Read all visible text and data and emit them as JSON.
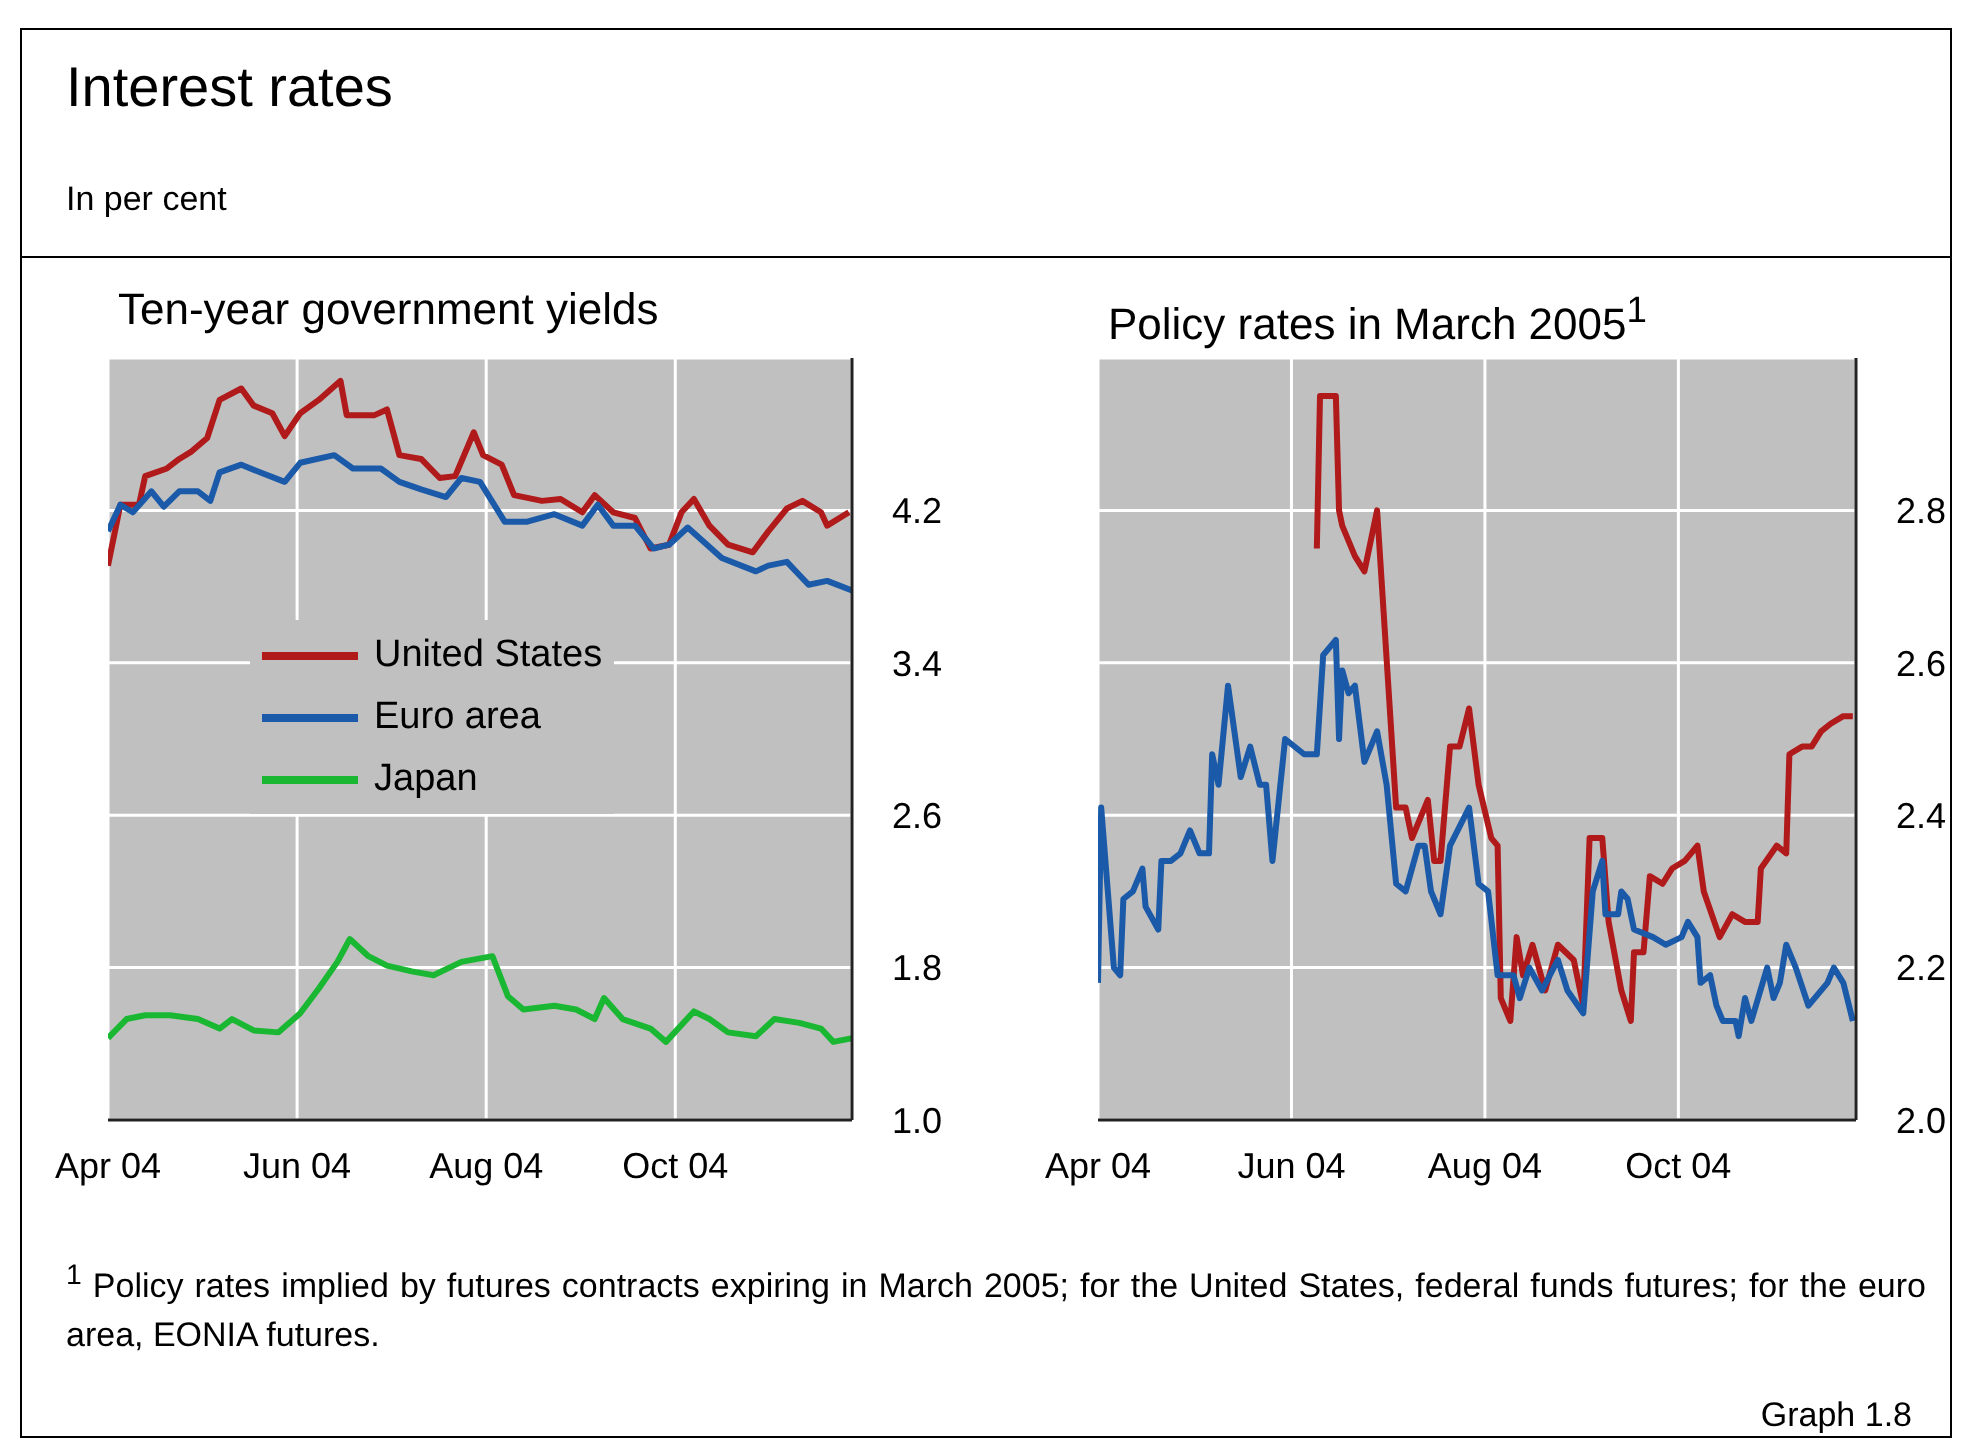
{
  "chart_data": [
    {
      "type": "other",
      "title": "Interest rates",
      "subtitle": "In per cent"
    },
    {
      "type": "line",
      "title": "Ten-year government yields",
      "grid": true,
      "legend": "left",
      "line_style": "solid",
      "marker": "none",
      "xlim": [
        "2004-04-01",
        "2004-11-27"
      ],
      "xticks": [
        {
          "value": "2004-04-01",
          "label": "Apr 04"
        },
        {
          "value": "2004-06-01",
          "label": "Jun 04"
        },
        {
          "value": "2004-08-01",
          "label": "Aug 04"
        },
        {
          "value": "2004-10-01",
          "label": "Oct 04"
        }
      ],
      "ylim": [
        1.0,
        5.0
      ],
      "yticks": [
        {
          "value": 1.0,
          "label": "1.0"
        },
        1.8,
        2.6,
        3.4,
        4.2
      ],
      "series": [
        {
          "name": "United States",
          "color": "#b01a1a",
          "x": [
            "2004-04-01",
            "2004-04-05",
            "2004-04-11",
            "2004-04-13",
            "2004-04-20",
            "2004-04-24",
            "2004-04-28",
            "2004-05-03",
            "2004-05-07",
            "2004-05-14",
            "2004-05-18",
            "2004-05-24",
            "2004-05-28",
            "2004-06-02",
            "2004-06-08",
            "2004-06-15",
            "2004-06-17",
            "2004-06-26",
            "2004-06-30",
            "2004-07-04",
            "2004-07-11",
            "2004-07-17",
            "2004-07-22",
            "2004-07-28",
            "2004-07-31",
            "2004-08-06",
            "2004-08-10",
            "2004-08-19",
            "2004-08-25",
            "2004-09-01",
            "2004-09-05",
            "2004-09-11",
            "2004-09-18",
            "2004-09-23",
            "2004-09-29",
            "2004-10-03",
            "2004-10-07",
            "2004-10-12",
            "2004-10-18",
            "2004-10-26",
            "2004-10-31",
            "2004-11-06",
            "2004-11-11",
            "2004-11-17",
            "2004-11-19",
            "2004-11-26"
          ],
          "values": [
            3.91,
            4.23,
            4.23,
            4.38,
            4.42,
            4.47,
            4.51,
            4.58,
            4.78,
            4.84,
            4.75,
            4.71,
            4.59,
            4.71,
            4.78,
            4.88,
            4.7,
            4.7,
            4.73,
            4.49,
            4.47,
            4.37,
            4.38,
            4.61,
            4.49,
            4.44,
            4.28,
            4.25,
            4.26,
            4.19,
            4.28,
            4.19,
            4.16,
            4.0,
            4.02,
            4.19,
            4.26,
            4.12,
            4.02,
            3.98,
            4.09,
            4.21,
            4.25,
            4.19,
            4.12,
            4.19
          ]
        },
        {
          "name": "Euro area",
          "color": "#1a5aa8",
          "x": [
            "2004-04-01",
            "2004-04-05",
            "2004-04-09",
            "2004-04-15",
            "2004-04-19",
            "2004-04-24",
            "2004-04-30",
            "2004-05-04",
            "2004-05-07",
            "2004-05-14",
            "2004-05-20",
            "2004-05-28",
            "2004-06-02",
            "2004-06-13",
            "2004-06-19",
            "2004-06-28",
            "2004-07-04",
            "2004-07-11",
            "2004-07-19",
            "2004-07-24",
            "2004-07-30",
            "2004-08-07",
            "2004-08-14",
            "2004-08-23",
            "2004-09-01",
            "2004-09-06",
            "2004-09-11",
            "2004-09-18",
            "2004-09-24",
            "2004-09-29",
            "2004-10-05",
            "2004-10-16",
            "2004-10-27",
            "2004-10-31",
            "2004-11-06",
            "2004-11-13",
            "2004-11-19",
            "2004-11-27"
          ],
          "values": [
            4.09,
            4.23,
            4.19,
            4.3,
            4.22,
            4.3,
            4.3,
            4.25,
            4.4,
            4.44,
            4.4,
            4.35,
            4.45,
            4.49,
            4.42,
            4.42,
            4.35,
            4.31,
            4.27,
            4.37,
            4.35,
            4.14,
            4.14,
            4.18,
            4.12,
            4.23,
            4.12,
            4.12,
            4.0,
            4.02,
            4.11,
            3.95,
            3.88,
            3.91,
            3.93,
            3.81,
            3.83,
            3.78
          ]
        },
        {
          "name": "Japan",
          "color": "#1ab832",
          "x": [
            "2004-04-01",
            "2004-04-07",
            "2004-04-13",
            "2004-04-21",
            "2004-04-30",
            "2004-05-07",
            "2004-05-11",
            "2004-05-18",
            "2004-05-26",
            "2004-06-02",
            "2004-06-08",
            "2004-06-14",
            "2004-06-18",
            "2004-06-24",
            "2004-06-30",
            "2004-07-08",
            "2004-07-15",
            "2004-07-24",
            "2004-08-03",
            "2004-08-08",
            "2004-08-13",
            "2004-08-23",
            "2004-08-30",
            "2004-09-05",
            "2004-09-08",
            "2004-09-14",
            "2004-09-23",
            "2004-09-28",
            "2004-10-07",
            "2004-10-12",
            "2004-10-18",
            "2004-10-27",
            "2004-11-02",
            "2004-11-10",
            "2004-11-17",
            "2004-11-21",
            "2004-11-27"
          ],
          "values": [
            1.43,
            1.53,
            1.55,
            1.55,
            1.53,
            1.48,
            1.53,
            1.47,
            1.46,
            1.56,
            1.69,
            1.83,
            1.95,
            1.86,
            1.81,
            1.78,
            1.76,
            1.83,
            1.86,
            1.65,
            1.58,
            1.6,
            1.58,
            1.53,
            1.64,
            1.53,
            1.48,
            1.41,
            1.57,
            1.53,
            1.46,
            1.44,
            1.53,
            1.51,
            1.48,
            1.41,
            1.43
          ]
        }
      ]
    },
    {
      "type": "line",
      "title": "Policy rates in March 2005$^{1}$",
      "grid": true,
      "line_style": "solid",
      "marker": "none",
      "xlim": [
        "2004-04-01",
        "2004-11-26"
      ],
      "xticks": [
        {
          "value": "2004-04-01",
          "label": "Apr 04"
        },
        {
          "value": "2004-06-01",
          "label": "Jun 04"
        },
        {
          "value": "2004-08-01",
          "label": "Aug 04"
        },
        {
          "value": "2004-10-01",
          "label": "Oct 04"
        }
      ],
      "ylim": [
        2.0,
        3.0
      ],
      "yticks": [
        {
          "value": 2.0,
          "label": "2.0"
        },
        2.2,
        2.4,
        2.6,
        2.8
      ],
      "annotations": [
        "$^{1}$ Policy rates implied by futures contracts expiring in March 2005; for the United States, federal funds futures; for the euro area, EONIA futures.",
        "Graph 1.8"
      ],
      "series": [
        {
          "color": "#b01a1a",
          "x": [
            "2004-06-09",
            "2004-06-10",
            "2004-06-15",
            "2004-06-16",
            "2004-06-17",
            "2004-06-21",
            "2004-06-24",
            "2004-06-28",
            "2004-07-04",
            "2004-07-07",
            "2004-07-09",
            "2004-07-14",
            "2004-07-16",
            "2004-07-18",
            "2004-07-21",
            "2004-07-24",
            "2004-07-27",
            "2004-07-30",
            "2004-08-03",
            "2004-08-05",
            "2004-08-06",
            "2004-08-09",
            "2004-08-11",
            "2004-08-13",
            "2004-08-16",
            "2004-08-20",
            "2004-08-24",
            "2004-08-29",
            "2004-09-01",
            "2004-09-03",
            "2004-09-07",
            "2004-09-09",
            "2004-09-13",
            "2004-09-16",
            "2004-09-17",
            "2004-09-20",
            "2004-09-22",
            "2004-09-26",
            "2004-09-29",
            "2004-10-03",
            "2004-10-05",
            "2004-10-07",
            "2004-10-09",
            "2004-10-14",
            "2004-10-18",
            "2004-10-22",
            "2004-10-26",
            "2004-10-27",
            "2004-11-01",
            "2004-11-04",
            "2004-11-05",
            "2004-11-09",
            "2004-11-12",
            "2004-11-15",
            "2004-11-18",
            "2004-11-22",
            "2004-11-25"
          ],
          "values": [
            2.75,
            2.95,
            2.95,
            2.8,
            2.78,
            2.74,
            2.72,
            2.8,
            2.41,
            2.41,
            2.37,
            2.42,
            2.34,
            2.34,
            2.49,
            2.49,
            2.54,
            2.44,
            2.37,
            2.36,
            2.16,
            2.13,
            2.24,
            2.19,
            2.23,
            2.17,
            2.23,
            2.21,
            2.15,
            2.37,
            2.37,
            2.26,
            2.17,
            2.13,
            2.22,
            2.22,
            2.32,
            2.31,
            2.33,
            2.34,
            2.35,
            2.36,
            2.3,
            2.24,
            2.27,
            2.26,
            2.26,
            2.33,
            2.36,
            2.35,
            2.48,
            2.49,
            2.49,
            2.51,
            2.52,
            2.53,
            2.53
          ]
        },
        {
          "color": "#1a5aa8",
          "x": [
            "2004-04-01",
            "2004-04-02",
            "2004-04-06",
            "2004-04-08",
            "2004-04-09",
            "2004-04-12",
            "2004-04-15",
            "2004-04-16",
            "2004-04-20",
            "2004-04-21",
            "2004-04-24",
            "2004-04-27",
            "2004-04-30",
            "2004-05-03",
            "2004-05-06",
            "2004-05-07",
            "2004-05-09",
            "2004-05-12",
            "2004-05-16",
            "2004-05-19",
            "2004-05-22",
            "2004-05-24",
            "2004-05-26",
            "2004-05-30",
            "2004-06-05",
            "2004-06-09",
            "2004-06-11",
            "2004-06-15",
            "2004-06-16",
            "2004-06-17",
            "2004-06-19",
            "2004-06-21",
            "2004-06-24",
            "2004-06-28",
            "2004-07-01",
            "2004-07-04",
            "2004-07-07",
            "2004-07-11",
            "2004-07-13",
            "2004-07-15",
            "2004-07-18",
            "2004-07-21",
            "2004-07-27",
            "2004-07-30",
            "2004-08-02",
            "2004-08-05",
            "2004-08-10",
            "2004-08-12",
            "2004-08-15",
            "2004-08-19",
            "2004-08-24",
            "2004-08-27",
            "2004-09-01",
            "2004-09-04",
            "2004-09-07",
            "2004-09-08",
            "2004-09-12",
            "2004-09-13",
            "2004-09-15",
            "2004-09-17",
            "2004-09-23",
            "2004-09-27",
            "2004-10-02",
            "2004-10-04",
            "2004-10-07",
            "2004-10-08",
            "2004-10-11",
            "2004-10-13",
            "2004-10-15",
            "2004-10-19",
            "2004-10-20",
            "2004-10-22",
            "2004-10-24",
            "2004-10-29",
            "2004-10-31",
            "2004-11-02",
            "2004-11-04",
            "2004-11-07",
            "2004-11-11",
            "2004-11-17",
            "2004-11-19",
            "2004-11-22",
            "2004-11-25"
          ],
          "values": [
            2.18,
            2.41,
            2.2,
            2.19,
            2.29,
            2.3,
            2.33,
            2.28,
            2.25,
            2.34,
            2.34,
            2.35,
            2.38,
            2.35,
            2.35,
            2.48,
            2.44,
            2.57,
            2.45,
            2.49,
            2.44,
            2.44,
            2.34,
            2.5,
            2.48,
            2.48,
            2.61,
            2.63,
            2.5,
            2.59,
            2.56,
            2.57,
            2.47,
            2.51,
            2.44,
            2.31,
            2.3,
            2.36,
            2.36,
            2.3,
            2.27,
            2.36,
            2.41,
            2.31,
            2.3,
            2.19,
            2.19,
            2.16,
            2.2,
            2.17,
            2.21,
            2.17,
            2.14,
            2.3,
            2.34,
            2.27,
            2.27,
            2.3,
            2.29,
            2.25,
            2.24,
            2.23,
            2.24,
            2.26,
            2.24,
            2.18,
            2.19,
            2.15,
            2.13,
            2.13,
            2.11,
            2.16,
            2.13,
            2.2,
            2.16,
            2.18,
            2.23,
            2.2,
            2.15,
            2.18,
            2.2,
            2.18,
            2.13
          ]
        }
      ]
    }
  ]
}
